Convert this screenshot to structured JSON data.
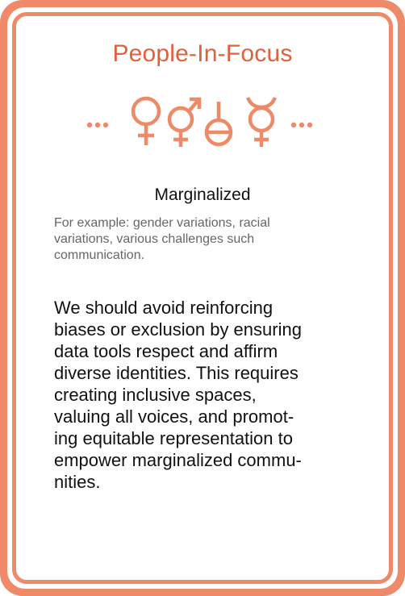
{
  "card": {
    "title": "People-In-Focus",
    "subtitle": "Marginalized",
    "example_lines": [
      "For example: gender variations, racial",
      "variations, various challenges such",
      "communication."
    ],
    "body_lines": [
      "We should avoid reinforcing",
      "biases or exclusion by ensuring",
      "data tools respect and affirm",
      "diverse identities. This requires",
      "creating inclusive spaces,",
      "valuing all voices, and promot-",
      "ing equitable representation to",
      "empower marginalized commu-",
      "nities."
    ]
  },
  "icons": [
    "ellipsis-icon",
    "female-symbol-icon",
    "transgender-symbol-icon",
    "neutrois-symbol-icon",
    "hermaphrodite-symbol-icon",
    "ellipsis-icon"
  ],
  "colors": {
    "accent": "#ee8a67",
    "title": "#e0613b",
    "body": "#111111",
    "muted": "#666666"
  }
}
